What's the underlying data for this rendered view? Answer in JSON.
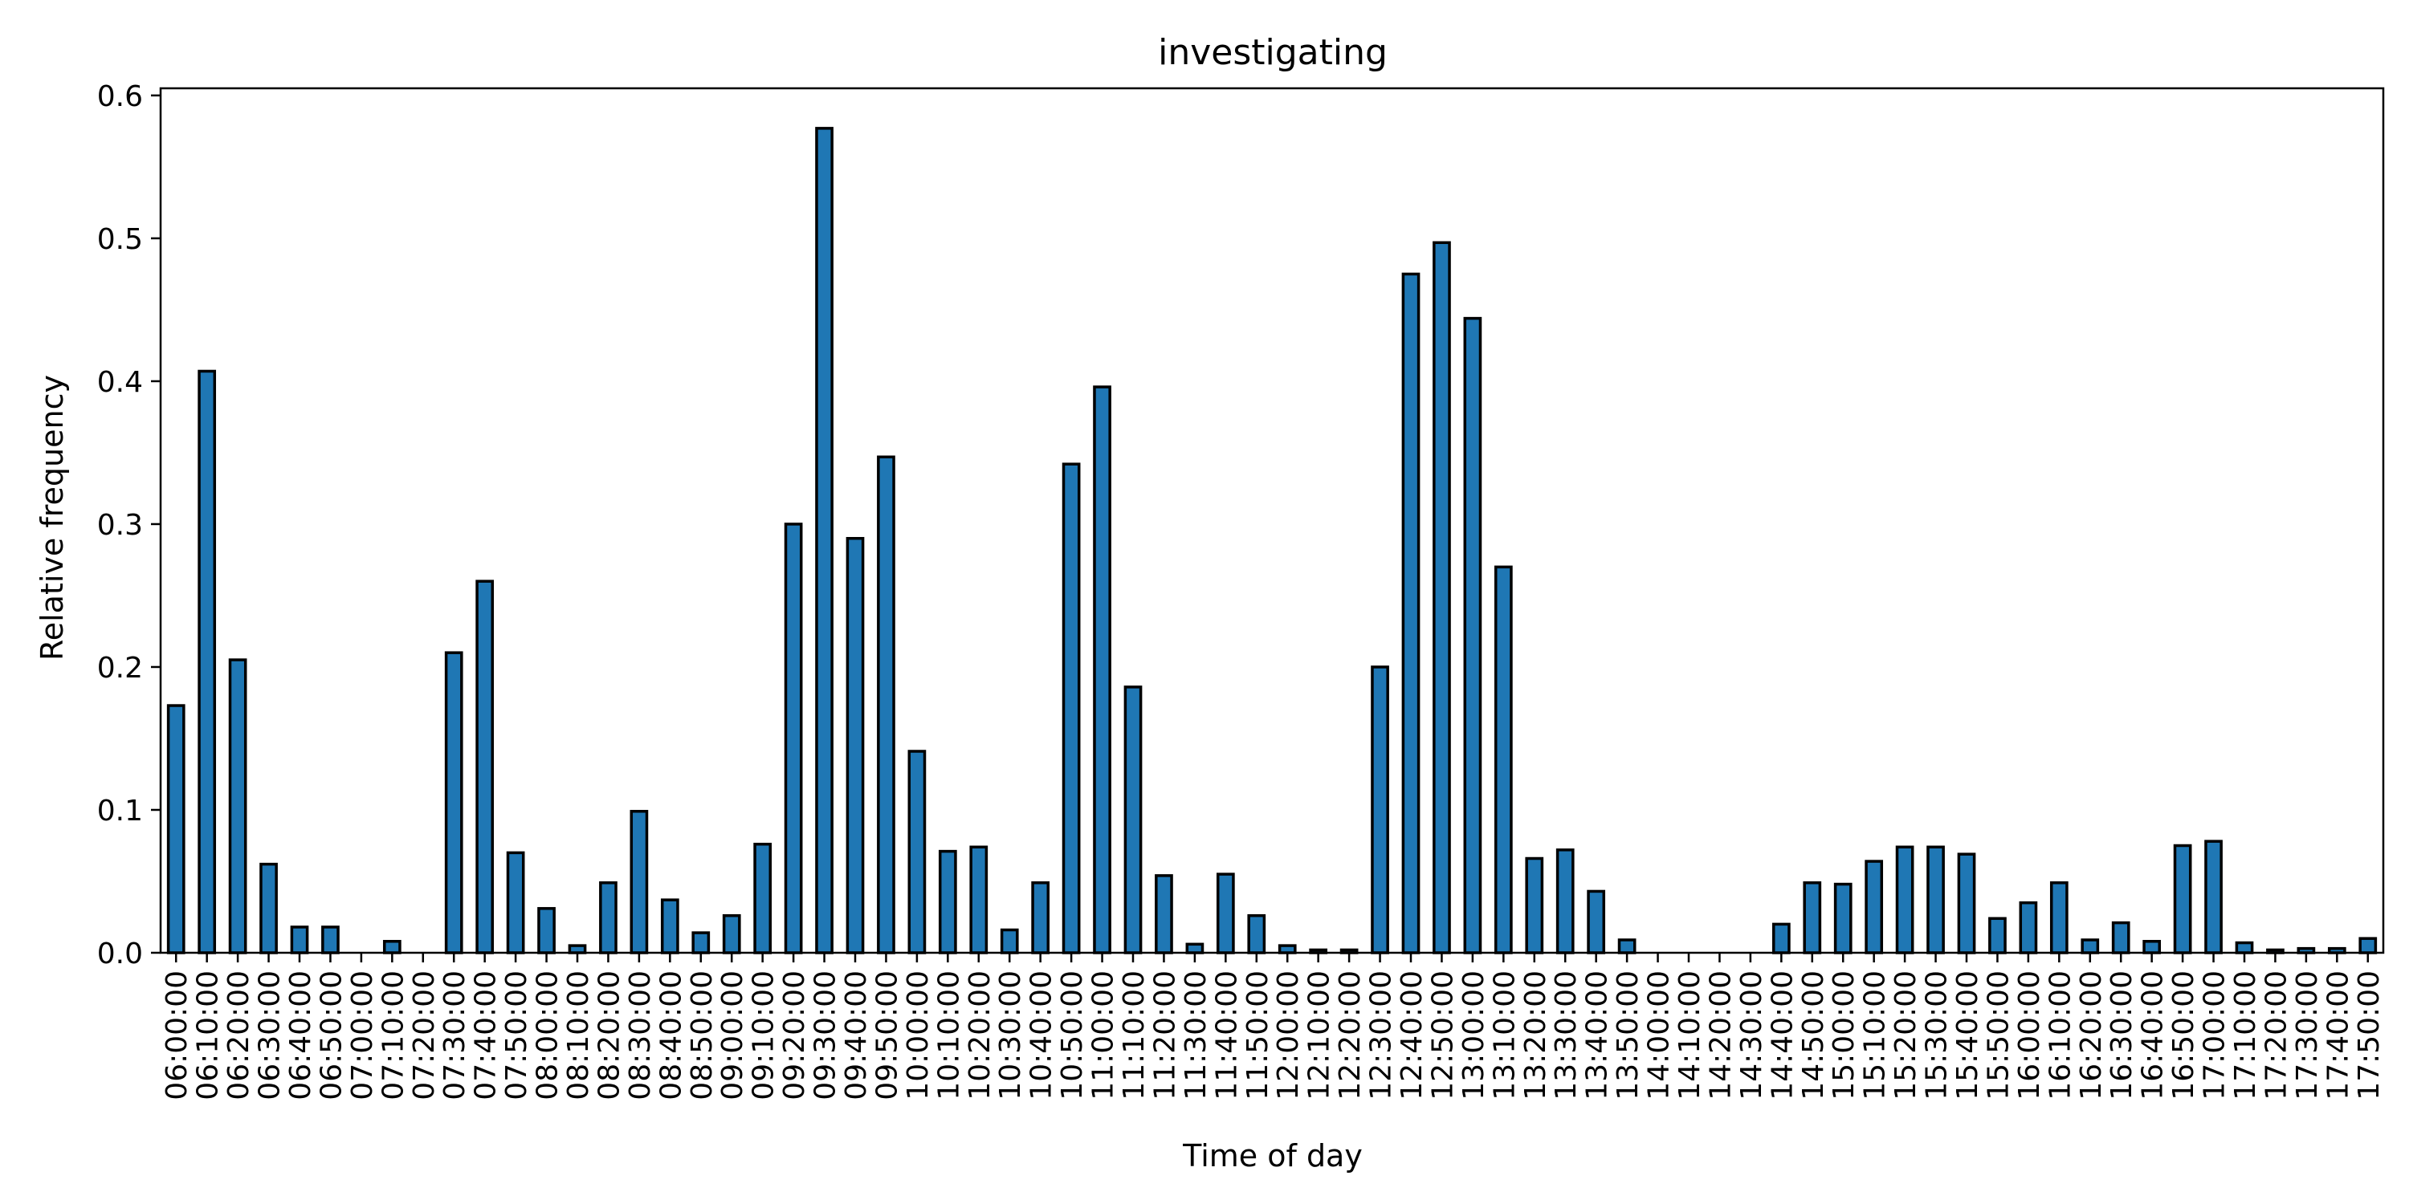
{
  "chart_data": {
    "type": "bar",
    "title": "investigating",
    "xlabel": "Time of day",
    "ylabel": "Relative frequency",
    "ylim": [
      0,
      0.605
    ],
    "yticks": [
      "0.0",
      "0.1",
      "0.2",
      "0.3",
      "0.4",
      "0.5",
      "0.6"
    ],
    "grid": false,
    "bar_color": "#1f77b4",
    "categories": [
      "06:00:00",
      "06:10:00",
      "06:20:00",
      "06:30:00",
      "06:40:00",
      "06:50:00",
      "07:00:00",
      "07:10:00",
      "07:20:00",
      "07:30:00",
      "07:40:00",
      "07:50:00",
      "08:00:00",
      "08:10:00",
      "08:20:00",
      "08:30:00",
      "08:40:00",
      "08:50:00",
      "09:00:00",
      "09:10:00",
      "09:20:00",
      "09:30:00",
      "09:40:00",
      "09:50:00",
      "10:00:00",
      "10:10:00",
      "10:20:00",
      "10:30:00",
      "10:40:00",
      "10:50:00",
      "11:00:00",
      "11:10:00",
      "11:20:00",
      "11:30:00",
      "11:40:00",
      "11:50:00",
      "12:00:00",
      "12:10:00",
      "12:20:00",
      "12:30:00",
      "12:40:00",
      "12:50:00",
      "13:00:00",
      "13:10:00",
      "13:20:00",
      "13:30:00",
      "13:40:00",
      "13:50:00",
      "14:00:00",
      "14:10:00",
      "14:20:00",
      "14:30:00",
      "14:40:00",
      "14:50:00",
      "15:00:00",
      "15:10:00",
      "15:20:00",
      "15:30:00",
      "15:40:00",
      "15:50:00",
      "16:00:00",
      "16:10:00",
      "16:20:00",
      "16:30:00",
      "16:40:00",
      "16:50:00",
      "17:00:00",
      "17:10:00",
      "17:20:00",
      "17:30:00",
      "17:40:00",
      "17:50:00"
    ],
    "values": [
      0.173,
      0.407,
      0.205,
      0.062,
      0.018,
      0.018,
      0.0,
      0.008,
      0.0,
      0.21,
      0.26,
      0.07,
      0.031,
      0.005,
      0.049,
      0.099,
      0.037,
      0.014,
      0.026,
      0.076,
      0.3,
      0.577,
      0.29,
      0.347,
      0.141,
      0.071,
      0.074,
      0.016,
      0.049,
      0.342,
      0.396,
      0.186,
      0.054,
      0.006,
      0.055,
      0.026,
      0.005,
      0.002,
      0.002,
      0.2,
      0.475,
      0.497,
      0.444,
      0.27,
      0.066,
      0.072,
      0.043,
      0.009,
      0.0,
      0.0,
      0.0,
      0.0,
      0.02,
      0.049,
      0.048,
      0.064,
      0.074,
      0.074,
      0.069,
      0.024,
      0.035,
      0.049,
      0.009,
      0.021,
      0.008,
      0.075,
      0.078,
      0.007,
      0.002,
      0.003,
      0.003,
      0.01
    ]
  }
}
